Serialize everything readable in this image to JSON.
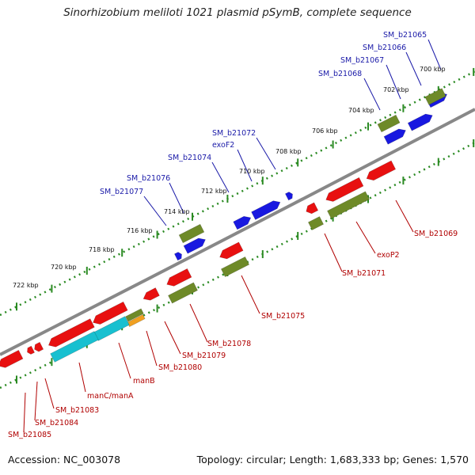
{
  "title": "Sinorhizobium meliloti 1021 plasmid pSymB, complete sequence",
  "footer": {
    "accession": "Accession: NC_003078",
    "topology": "Topology: circular; Length: 1,683,333 bp; Genes: 1,570"
  },
  "colors": {
    "backbone": "#888888",
    "ticks": "#2a8a22",
    "forward_gene": "#1818e0",
    "reverse_gene": "#e81010",
    "forward_cds": "#6e8a28",
    "reverse_cds": "#6e8a28",
    "cyan_feature": "#18c0d0",
    "orange_feature": "#f0a020",
    "blue_label": "#1a1aa8",
    "red_label": "#b00000"
  },
  "scale_labels": [
    "700 kbp",
    "702 kbp",
    "704 kbp",
    "706 kbp",
    "708 kbp",
    "710 kbp",
    "712 kbp",
    "714 kbp",
    "716 kbp",
    "718 kbp",
    "720 kbp",
    "722 kbp"
  ],
  "forward_labels": [
    "SM_b21065",
    "SM_b21066",
    "SM_b21067",
    "SM_b21068",
    "SM_b21072",
    "exoF2",
    "SM_b21074",
    "SM_b21076",
    "SM_b21077"
  ],
  "reverse_labels": [
    "SM_b21069",
    "exoP2",
    "SM_b21071",
    "SM_b21075",
    "SM_b21078",
    "SM_b21079",
    "SM_b21080",
    "manB",
    "manC/manA",
    "SM_b21083",
    "SM_b21084",
    "SM_b21085"
  ]
}
